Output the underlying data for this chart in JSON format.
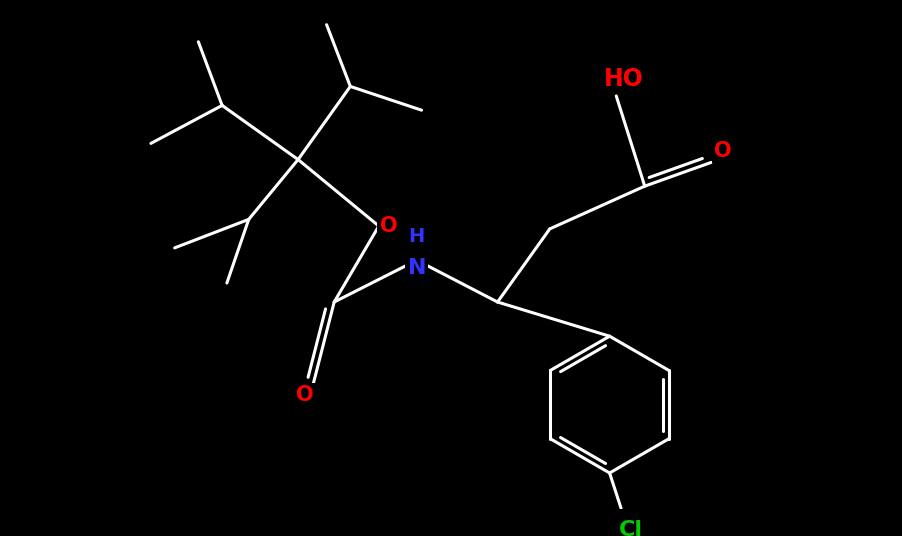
{
  "background_color": "#000000",
  "bond_color": "#ffffff",
  "O_color": "#ff0000",
  "N_color": "#3333ff",
  "Cl_color": "#00cc00",
  "line_width": 2.2,
  "font_size": 15,
  "fig_width": 9.02,
  "fig_height": 5.36,
  "dpi": 100,
  "xlim": [
    0,
    9.02
  ],
  "ylim": [
    0,
    5.36
  ]
}
